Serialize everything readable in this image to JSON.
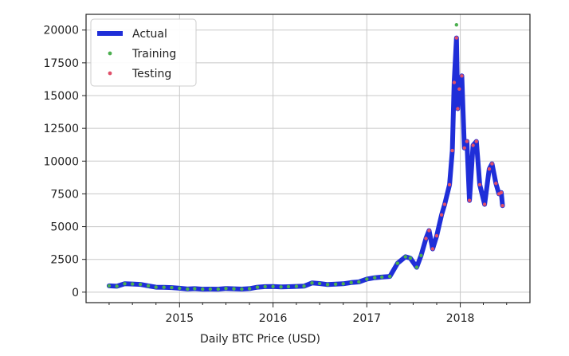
{
  "chart_data": {
    "type": "line",
    "title": "",
    "xlabel": "Daily BTC Price (USD)",
    "ylabel": "",
    "x_type": "date",
    "xlim": [
      "2014-01-01",
      "2018-09-30"
    ],
    "ylim": [
      -800,
      21200
    ],
    "grid": true,
    "legend_position": "top-left",
    "x_ticks": [
      {
        "date": "2015-01-01",
        "label": "2015"
      },
      {
        "date": "2016-01-01",
        "label": "2016"
      },
      {
        "date": "2017-01-01",
        "label": "2017"
      },
      {
        "date": "2018-01-01",
        "label": "2018"
      }
    ],
    "y_ticks": [
      0,
      2500,
      5000,
      7500,
      10000,
      12500,
      15000,
      17500,
      20000
    ],
    "series": [
      {
        "name": "Actual",
        "style": "line",
        "color": "#1f2ed8",
        "points": [
          [
            "2014-04-01",
            480
          ],
          [
            "2014-05-01",
            450
          ],
          [
            "2014-06-01",
            640
          ],
          [
            "2014-07-01",
            620
          ],
          [
            "2014-08-01",
            590
          ],
          [
            "2014-09-01",
            480
          ],
          [
            "2014-10-01",
            380
          ],
          [
            "2014-11-01",
            370
          ],
          [
            "2014-12-01",
            350
          ],
          [
            "2015-01-01",
            300
          ],
          [
            "2015-02-01",
            240
          ],
          [
            "2015-03-01",
            270
          ],
          [
            "2015-04-01",
            230
          ],
          [
            "2015-05-01",
            235
          ],
          [
            "2015-06-01",
            225
          ],
          [
            "2015-07-01",
            280
          ],
          [
            "2015-08-01",
            260
          ],
          [
            "2015-09-01",
            235
          ],
          [
            "2015-10-01",
            270
          ],
          [
            "2015-11-01",
            380
          ],
          [
            "2015-12-01",
            420
          ],
          [
            "2016-01-01",
            430
          ],
          [
            "2016-02-01",
            400
          ],
          [
            "2016-03-01",
            415
          ],
          [
            "2016-04-01",
            440
          ],
          [
            "2016-05-01",
            460
          ],
          [
            "2016-06-01",
            700
          ],
          [
            "2016-07-01",
            660
          ],
          [
            "2016-08-01",
            580
          ],
          [
            "2016-09-01",
            610
          ],
          [
            "2016-10-01",
            640
          ],
          [
            "2016-11-01",
            730
          ],
          [
            "2016-12-01",
            780
          ],
          [
            "2017-01-01",
            1000
          ],
          [
            "2017-02-01",
            1100
          ],
          [
            "2017-03-01",
            1150
          ],
          [
            "2017-04-01",
            1200
          ],
          [
            "2017-05-01",
            2200
          ],
          [
            "2017-06-01",
            2700
          ],
          [
            "2017-06-20",
            2600
          ],
          [
            "2017-07-15",
            1900
          ],
          [
            "2017-08-01",
            2800
          ],
          [
            "2017-08-20",
            4100
          ],
          [
            "2017-09-01",
            4700
          ],
          [
            "2017-09-15",
            3300
          ],
          [
            "2017-10-01",
            4300
          ],
          [
            "2017-10-20",
            5900
          ],
          [
            "2017-11-01",
            6700
          ],
          [
            "2017-11-20",
            8200
          ],
          [
            "2017-12-01",
            10800
          ],
          [
            "2017-12-08",
            16000
          ],
          [
            "2017-12-17",
            19400
          ],
          [
            "2017-12-22",
            14000
          ],
          [
            "2017-12-28",
            15500
          ],
          [
            "2018-01-07",
            16500
          ],
          [
            "2018-01-17",
            11000
          ],
          [
            "2018-01-27",
            11500
          ],
          [
            "2018-02-06",
            7000
          ],
          [
            "2018-02-20",
            11200
          ],
          [
            "2018-03-05",
            11500
          ],
          [
            "2018-03-18",
            8200
          ],
          [
            "2018-04-06",
            6700
          ],
          [
            "2018-04-24",
            9400
          ],
          [
            "2018-05-05",
            9800
          ],
          [
            "2018-05-20",
            8300
          ],
          [
            "2018-06-01",
            7500
          ],
          [
            "2018-06-10",
            7600
          ],
          [
            "2018-06-15",
            6600
          ]
        ]
      },
      {
        "name": "Training",
        "style": "points",
        "color": "#4caf50",
        "points": [
          [
            "2014-04-01",
            480
          ],
          [
            "2014-05-01",
            450
          ],
          [
            "2014-06-01",
            640
          ],
          [
            "2014-07-01",
            620
          ],
          [
            "2014-08-01",
            590
          ],
          [
            "2014-09-01",
            480
          ],
          [
            "2014-10-01",
            380
          ],
          [
            "2014-11-01",
            370
          ],
          [
            "2014-12-01",
            350
          ],
          [
            "2015-01-01",
            300
          ],
          [
            "2015-02-01",
            240
          ],
          [
            "2015-03-01",
            270
          ],
          [
            "2015-04-01",
            230
          ],
          [
            "2015-05-01",
            235
          ],
          [
            "2015-06-01",
            225
          ],
          [
            "2015-07-01",
            280
          ],
          [
            "2015-08-01",
            260
          ],
          [
            "2015-09-01",
            235
          ],
          [
            "2015-10-01",
            270
          ],
          [
            "2015-11-01",
            380
          ],
          [
            "2015-12-01",
            420
          ],
          [
            "2016-01-01",
            430
          ],
          [
            "2016-02-01",
            400
          ],
          [
            "2016-03-01",
            415
          ],
          [
            "2016-04-01",
            440
          ],
          [
            "2016-05-01",
            460
          ],
          [
            "2016-06-01",
            700
          ],
          [
            "2016-07-01",
            660
          ],
          [
            "2016-08-01",
            580
          ],
          [
            "2016-09-01",
            610
          ],
          [
            "2016-10-01",
            640
          ],
          [
            "2016-11-01",
            730
          ],
          [
            "2016-12-01",
            780
          ],
          [
            "2017-01-01",
            1000
          ],
          [
            "2017-02-01",
            1100
          ],
          [
            "2017-03-01",
            1150
          ],
          [
            "2017-04-01",
            1200
          ],
          [
            "2017-05-01",
            2200
          ],
          [
            "2017-06-01",
            2700
          ],
          [
            "2017-06-20",
            2600
          ],
          [
            "2017-07-15",
            1900
          ],
          [
            "2017-08-01",
            2800
          ],
          [
            "2017-12-17",
            20400
          ]
        ]
      },
      {
        "name": "Testing",
        "style": "points",
        "color": "#e0506a",
        "points": [
          [
            "2017-08-20",
            4100
          ],
          [
            "2017-09-01",
            4700
          ],
          [
            "2017-09-15",
            3300
          ],
          [
            "2017-10-01",
            4300
          ],
          [
            "2017-10-20",
            5900
          ],
          [
            "2017-11-01",
            6700
          ],
          [
            "2017-11-20",
            8200
          ],
          [
            "2017-12-01",
            10800
          ],
          [
            "2017-12-08",
            16000
          ],
          [
            "2017-12-17",
            19400
          ],
          [
            "2017-12-22",
            14000
          ],
          [
            "2017-12-28",
            15500
          ],
          [
            "2018-01-07",
            16500
          ],
          [
            "2018-01-17",
            11000
          ],
          [
            "2018-01-27",
            11500
          ],
          [
            "2018-02-06",
            7000
          ],
          [
            "2018-02-20",
            11200
          ],
          [
            "2018-03-05",
            11500
          ],
          [
            "2018-03-18",
            8200
          ],
          [
            "2018-04-06",
            6700
          ],
          [
            "2018-04-24",
            9400
          ],
          [
            "2018-05-05",
            9800
          ],
          [
            "2018-05-20",
            8300
          ],
          [
            "2018-06-01",
            7500
          ],
          [
            "2018-06-10",
            7600
          ],
          [
            "2018-06-15",
            6600
          ]
        ]
      }
    ]
  }
}
